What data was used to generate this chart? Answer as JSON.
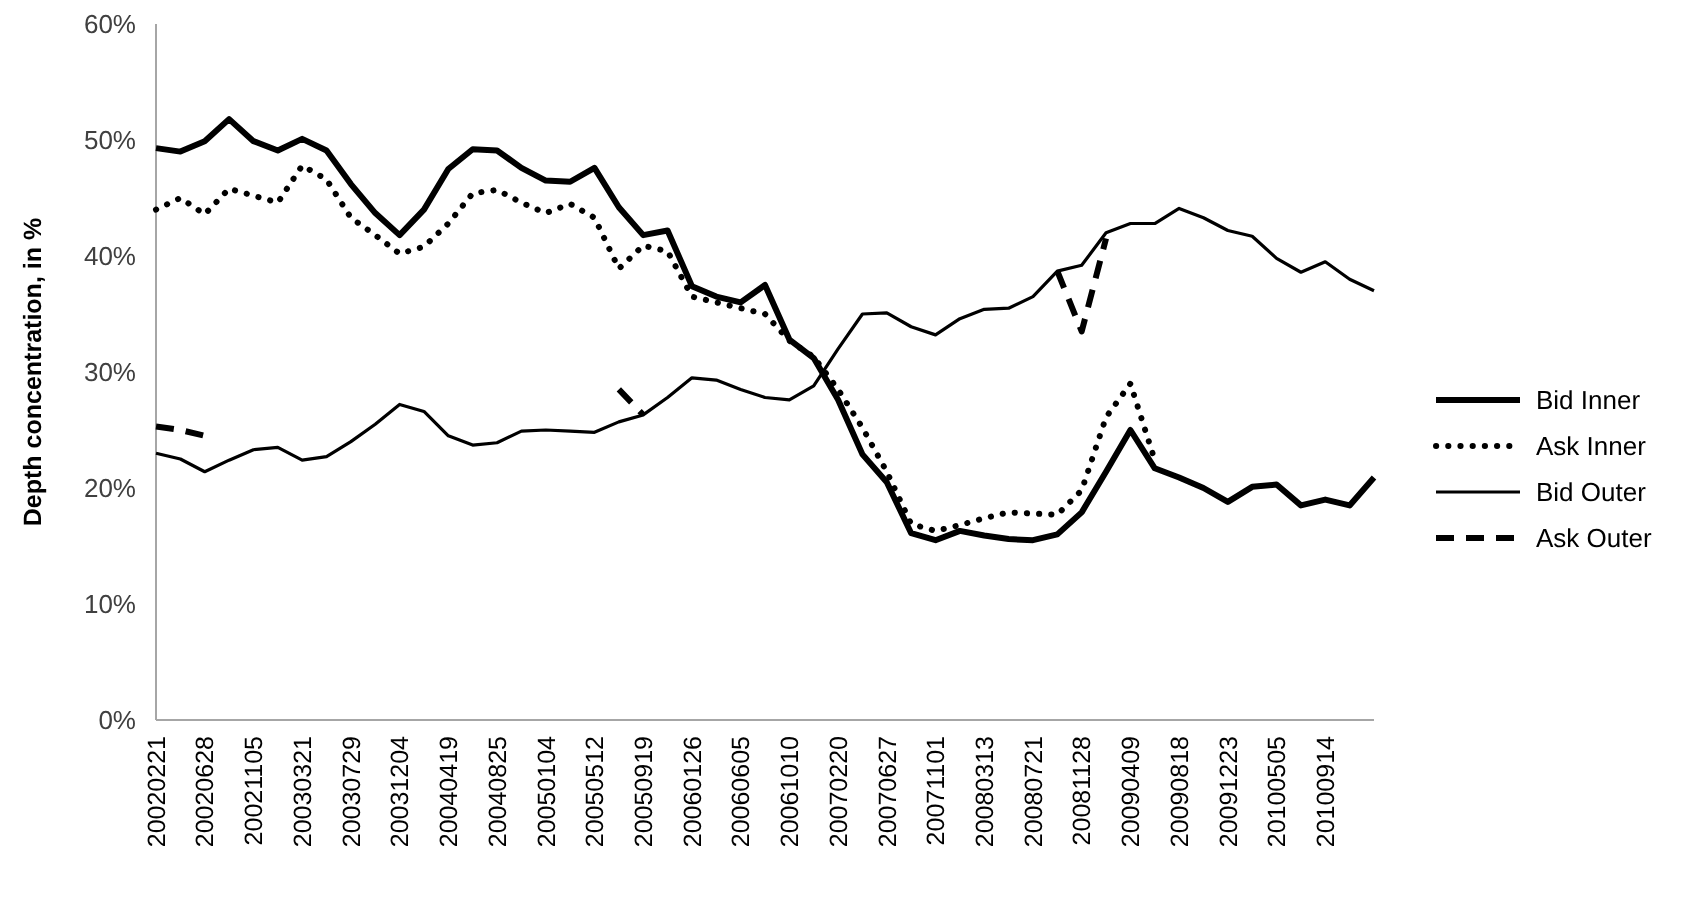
{
  "chart_data": {
    "type": "line",
    "ylabel": "Depth concentration, in %",
    "categories": [
      "20020221",
      null,
      "20020628",
      null,
      "20021105",
      null,
      "20030321",
      null,
      "20030729",
      null,
      "20031204",
      null,
      "20040419",
      null,
      "20040825",
      null,
      "20050104",
      null,
      "20050512",
      null,
      "20050919",
      null,
      "20060126",
      null,
      "20060605",
      null,
      "20061010",
      null,
      "20070220",
      null,
      "20070627",
      null,
      "20071101",
      null,
      "20080313",
      null,
      "20080721",
      null,
      "20081128",
      null,
      "20090409",
      null,
      "20090818",
      null,
      "20091223",
      null,
      "20100505",
      null,
      "20100914",
      null,
      null
    ],
    "ylim": [
      0,
      60
    ],
    "yticks": [
      {
        "value": 0,
        "label": "0%"
      },
      {
        "value": 10,
        "label": "10%"
      },
      {
        "value": 20,
        "label": "20%"
      },
      {
        "value": 30,
        "label": "30%"
      },
      {
        "value": 40,
        "label": "40%"
      },
      {
        "value": 50,
        "label": "50%"
      },
      {
        "value": 60,
        "label": "60%"
      }
    ],
    "grid": false,
    "legend": "right",
    "marker": "none",
    "series": [
      {
        "name": "Bid Inner",
        "color": "#000000",
        "line_style": "solid",
        "values": [
          49.3,
          49,
          49.9,
          51.8,
          49.9,
          49.1,
          50.1,
          49.1,
          46.2,
          43.7,
          41.8,
          44,
          47.5,
          49.2,
          49.1,
          47.6,
          46.5,
          46.4,
          47.6,
          44.2,
          41.8,
          42.2,
          37.4,
          36.5,
          36,
          37.5,
          32.8,
          31.2,
          27.6,
          22.9,
          20.5,
          16.1,
          15.5,
          16.3,
          15.9,
          15.6,
          15.5,
          16,
          17.9,
          21.4,
          25,
          21.7,
          20.9,
          20,
          18.8,
          20.1,
          20.3,
          18.5,
          19,
          18.5,
          20.9
        ]
      },
      {
        "name": "Ask Inner",
        "color": "#000000",
        "line_style": "dotted",
        "values": [
          44,
          45,
          43.6,
          45.8,
          45.2,
          44.6,
          47.8,
          46.6,
          43.3,
          41.8,
          40.2,
          40.8,
          42.8,
          45.4,
          45.7,
          44.6,
          43.7,
          44.5,
          43.3,
          38.9,
          40.9,
          40.4,
          36.5,
          36,
          35.5,
          35,
          32.7,
          31.3,
          28.5,
          25.2,
          21.4,
          16.9,
          16.3,
          16.8,
          17.4,
          17.9,
          17.8,
          17.7,
          19.8,
          26.1,
          29,
          22.4,
          null,
          null,
          null,
          null,
          null,
          null,
          null,
          null,
          null
        ]
      },
      {
        "name": "Bid Outer",
        "color": "#000000",
        "line_style": "solid",
        "values": [
          23,
          22.5,
          21.4,
          22.4,
          23.3,
          23.5,
          22.4,
          22.7,
          24,
          25.5,
          27.2,
          26.6,
          24.5,
          23.7,
          23.9,
          24.9,
          25,
          24.9,
          24.8,
          25.7,
          26.3,
          27.8,
          29.5,
          29.3,
          28.5,
          27.8,
          27.6,
          28.8,
          32,
          35,
          35.1,
          33.9,
          33.2,
          34.6,
          35.4,
          35.5,
          36.5,
          38.7,
          39.2,
          42,
          42.8,
          42.8,
          44.1,
          43.3,
          42.2,
          41.7,
          39.8,
          38.6,
          39.5,
          38,
          37
        ]
      },
      {
        "name": "Ask Outer",
        "color": "#000000",
        "line_style": "dashed",
        "values": [
          25.3,
          25,
          24.5,
          null,
          null,
          null,
          null,
          null,
          null,
          null,
          null,
          null,
          null,
          null,
          null,
          null,
          null,
          null,
          null,
          28.5,
          26.3,
          null,
          null,
          null,
          null,
          null,
          null,
          null,
          null,
          null,
          null,
          null,
          null,
          null,
          null,
          null,
          null,
          38.7,
          33.5,
          41.5,
          null,
          null,
          null,
          null,
          null,
          null,
          null,
          null,
          null,
          null,
          null
        ]
      }
    ]
  }
}
